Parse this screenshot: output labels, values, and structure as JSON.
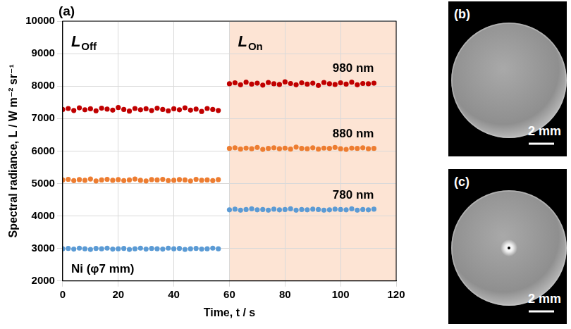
{
  "chart_data": {
    "type": "scatter",
    "panel_label": "(a)",
    "x_label": "Time, t / s",
    "y_label": "Spectral radiance, L / W m⁻² sr⁻¹",
    "xlim": [
      0,
      120
    ],
    "xticks": [
      0,
      20,
      40,
      60,
      80,
      100,
      120
    ],
    "ylim": [
      2000,
      10000
    ],
    "yticks": [
      2000,
      3000,
      4000,
      5000,
      6000,
      7000,
      8000,
      9000,
      10000
    ],
    "grid": true,
    "shaded_region": {
      "x": [
        60,
        120
      ],
      "color": "#fde4d4"
    },
    "annotations": [
      {
        "text": "L",
        "subscript": "Off"
      },
      {
        "text": "L",
        "subscript": "On"
      },
      {
        "text": "Ni (φ7 mm)"
      }
    ],
    "x": [
      0,
      2,
      4,
      6,
      8,
      10,
      12,
      14,
      16,
      18,
      20,
      22,
      24,
      26,
      28,
      30,
      32,
      34,
      36,
      38,
      40,
      42,
      44,
      46,
      48,
      50,
      52,
      54,
      56,
      58,
      60,
      62,
      64,
      66,
      68,
      70,
      72,
      74,
      76,
      78,
      80,
      82,
      84,
      86,
      88,
      90,
      92,
      94,
      96,
      98,
      100,
      102,
      104,
      106,
      108,
      110,
      112
    ],
    "series": [
      {
        "name": "980 nm",
        "color": "#c00000",
        "marker": "circle",
        "values": [
          7280,
          7310,
          7250,
          7330,
          7270,
          7300,
          7240,
          7320,
          7290,
          7260,
          7340,
          7280,
          7230,
          7310,
          7270,
          7300,
          7250,
          7320,
          7280,
          7240,
          7300,
          7270,
          7330,
          7260,
          7290,
          7220,
          7310,
          7280,
          7250,
          null,
          8070,
          8100,
          8040,
          8120,
          8060,
          8090,
          8030,
          8110,
          8070,
          8050,
          8130,
          8080,
          8040,
          8100,
          8060,
          8090,
          8020,
          8110,
          8070,
          8050,
          8100,
          8060,
          8120,
          8040,
          8080,
          8070,
          8090
        ]
      },
      {
        "name": "880 nm",
        "color": "#ed7d31",
        "marker": "circle",
        "values": [
          5110,
          5130,
          5090,
          5120,
          5100,
          5140,
          5080,
          5110,
          5130,
          5100,
          5120,
          5090,
          5110,
          5140,
          5100,
          5080,
          5120,
          5110,
          5130,
          5090,
          5100,
          5120,
          5110,
          5080,
          5130,
          5100,
          5110,
          5090,
          5120,
          null,
          6080,
          6100,
          6060,
          6090,
          6070,
          6110,
          6050,
          6080,
          6100,
          6070,
          6090,
          6060,
          6120,
          6080,
          6070,
          6100,
          6060,
          6090,
          6080,
          6110,
          6070,
          6050,
          6090,
          6080,
          6100,
          6070,
          6080
        ]
      },
      {
        "name": "780 nm",
        "color": "#5b9bd5",
        "marker": "circle",
        "values": [
          2990,
          3000,
          2980,
          3010,
          2990,
          2970,
          3000,
          2990,
          3010,
          2980,
          2990,
          3000,
          2970,
          2990,
          3010,
          2980,
          3000,
          2990,
          2980,
          3010,
          2990,
          3000,
          2970,
          2990,
          3000,
          2980,
          2990,
          3010,
          2990,
          null,
          4190,
          4210,
          4180,
          4200,
          4220,
          4190,
          4200,
          4180,
          4210,
          4190,
          4200,
          4220,
          4180,
          4200,
          4190,
          4210,
          4200,
          4180,
          4190,
          4210,
          4200,
          4190,
          4220,
          4180,
          4200,
          4190,
          4210
        ]
      }
    ]
  },
  "images": [
    {
      "label": "(b)",
      "scale_bar": "2 mm",
      "laser_spot": false
    },
    {
      "label": "(c)",
      "scale_bar": "2 mm",
      "laser_spot": true
    }
  ]
}
